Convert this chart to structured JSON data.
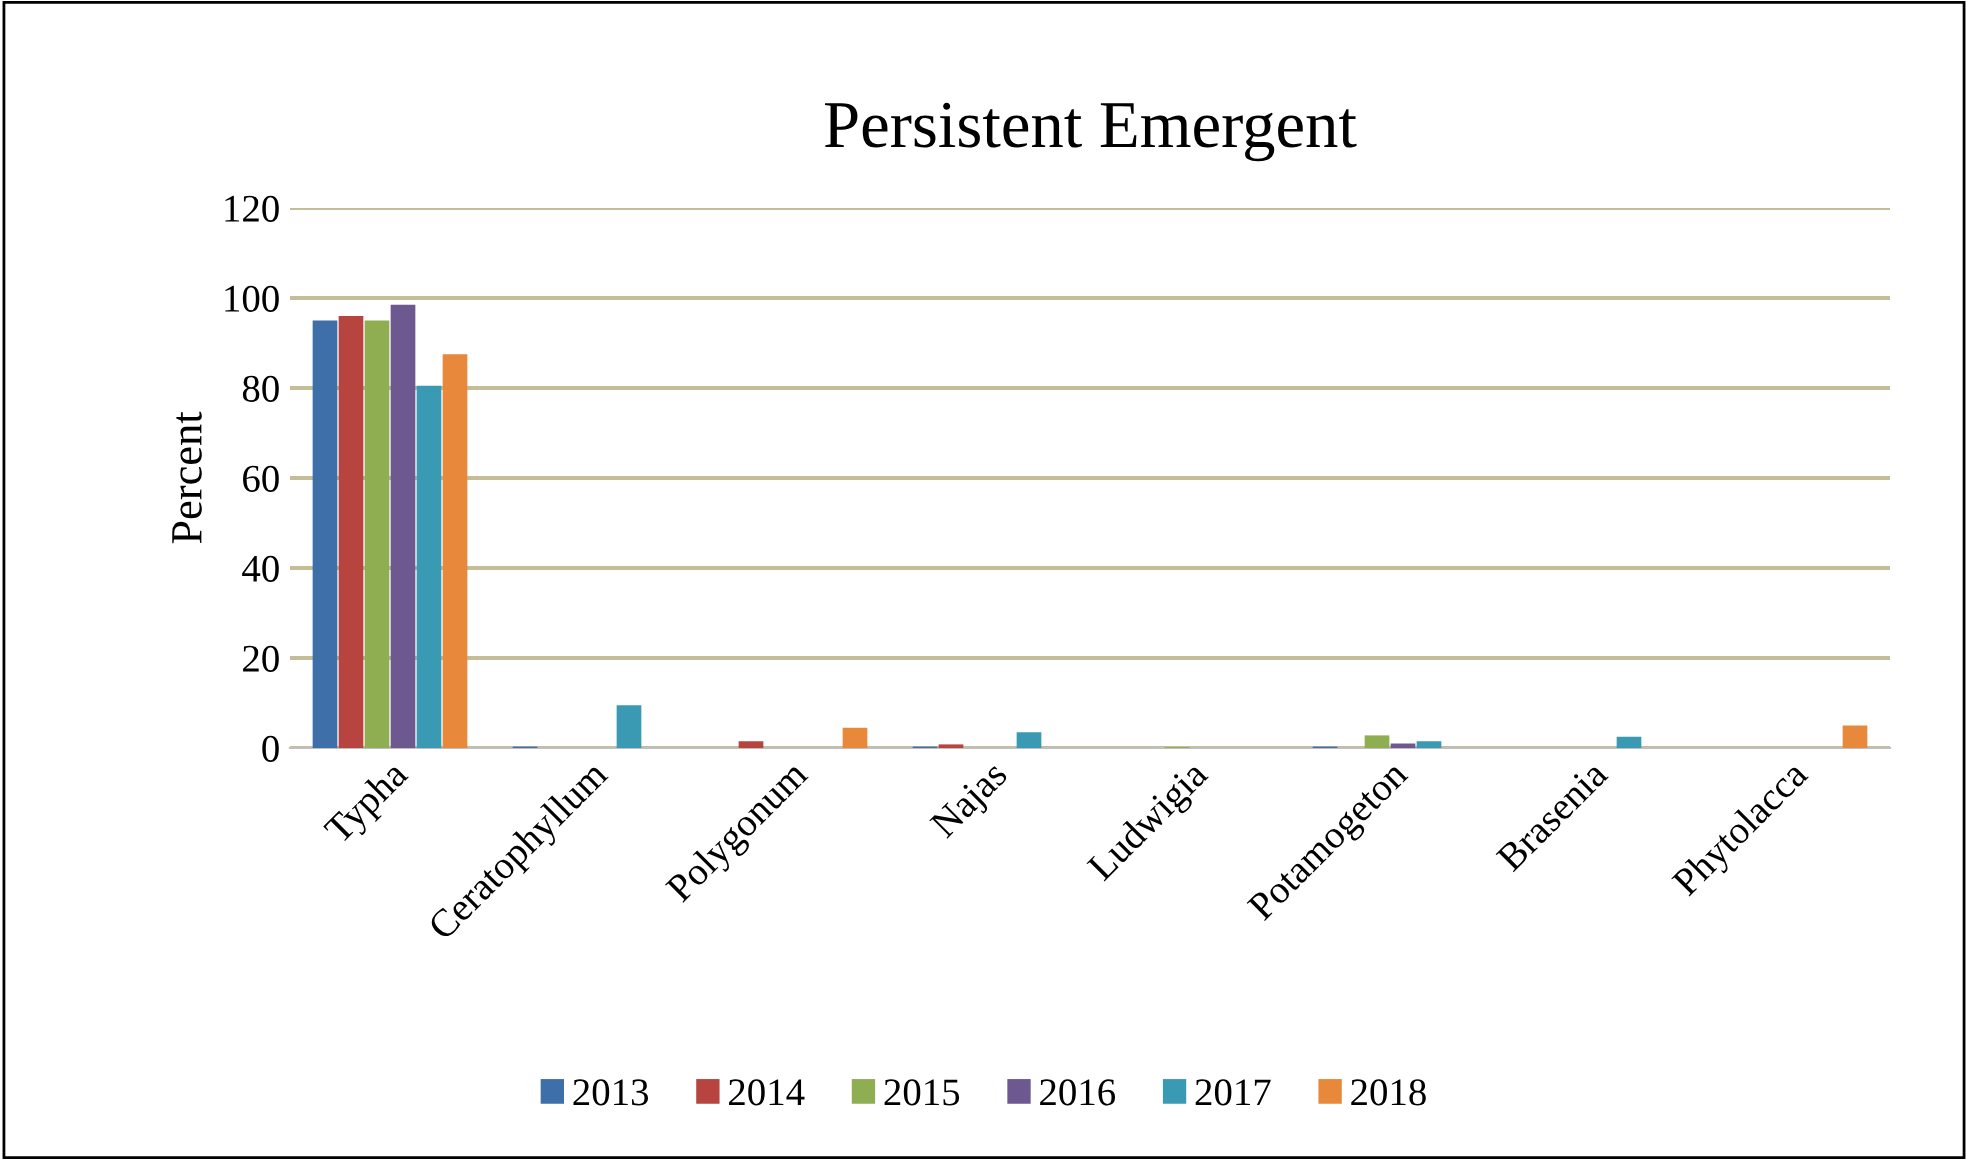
{
  "chart_data": {
    "type": "bar",
    "title": "Persistent Emergent",
    "ylabel": "Percent",
    "categories": [
      "Typha",
      "Ceratophyllum",
      "Polygonum",
      "Najas",
      "Ludwigia",
      "Potamogeton",
      "Brasenia",
      "Phytolacca"
    ],
    "series": [
      {
        "name": "2013",
        "color": "#3f6fa8",
        "values": [
          95,
          0.3,
          null,
          0.3,
          null,
          0.3,
          null,
          null
        ]
      },
      {
        "name": "2014",
        "color": "#b84440",
        "values": [
          96,
          null,
          1.5,
          0.8,
          null,
          null,
          null,
          null
        ]
      },
      {
        "name": "2015",
        "color": "#8fae52",
        "values": [
          95,
          null,
          null,
          null,
          0.2,
          2.8,
          null,
          null
        ]
      },
      {
        "name": "2016",
        "color": "#6e5890",
        "values": [
          98.5,
          null,
          null,
          null,
          null,
          1,
          null,
          null
        ]
      },
      {
        "name": "2017",
        "color": "#3b9ab3",
        "values": [
          80.5,
          9.5,
          null,
          3.5,
          null,
          1.5,
          2.5,
          null
        ]
      },
      {
        "name": "2018",
        "color": "#e8883a",
        "values": [
          87.5,
          null,
          4.5,
          null,
          null,
          null,
          null,
          5
        ]
      }
    ],
    "ylim": [
      0,
      120
    ],
    "yticks": [
      0,
      20,
      40,
      60,
      80,
      100,
      120
    ],
    "grid": "y",
    "legend": "bottom"
  }
}
